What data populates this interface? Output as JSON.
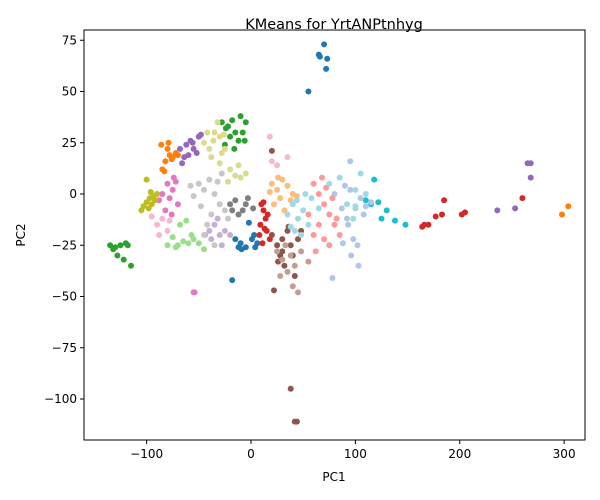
{
  "chart_data": {
    "type": "scatter",
    "title": "KMeans for YrtANPtnhyg",
    "xlabel": "PC1",
    "ylabel": "PC2",
    "xlim": [
      -160,
      320
    ],
    "ylim": [
      -120,
      80
    ],
    "x_ticks": [
      -100,
      0,
      100,
      200,
      300
    ],
    "y_ticks": [
      75,
      50,
      25,
      0,
      -25,
      -50,
      -75,
      -100
    ],
    "x_tick_labels": [
      "−100",
      "0",
      "100",
      "200",
      "300"
    ],
    "y_tick_labels": [
      "75",
      "50",
      "25",
      "0",
      "−25",
      "−50",
      "−75",
      "−100"
    ],
    "grid": false,
    "legend": "none",
    "series": [
      {
        "color": "#1f77b4",
        "points": [
          [
            65,
            68
          ],
          [
            66,
            67
          ],
          [
            70,
            73
          ],
          [
            73,
            66
          ],
          [
            72,
            61
          ],
          [
            55,
            50
          ],
          [
            3,
            -20
          ],
          [
            6,
            -24
          ],
          [
            -5,
            -26
          ],
          [
            -10,
            -24
          ],
          [
            -12,
            -26
          ],
          [
            1,
            -22
          ],
          [
            -2,
            -14
          ],
          [
            4,
            -26
          ],
          [
            -15,
            -22
          ],
          [
            -9,
            -27
          ],
          [
            -18,
            -42
          ]
        ]
      },
      {
        "color": "#ff7f0e",
        "points": [
          [
            -80,
            22
          ],
          [
            -78,
            19
          ],
          [
            -75,
            18
          ],
          [
            -82,
            16
          ],
          [
            -72,
            20
          ],
          [
            -85,
            12
          ],
          [
            -83,
            11
          ],
          [
            -76,
            17
          ],
          [
            -79,
            25
          ],
          [
            -70,
            19
          ],
          [
            -86,
            24
          ],
          [
            298,
            -10
          ],
          [
            304,
            -6
          ]
        ]
      },
      {
        "color": "#2ca02c",
        "points": [
          [
            -28,
            35
          ],
          [
            -22,
            33
          ],
          [
            -18,
            36
          ],
          [
            -10,
            38
          ],
          [
            -15,
            30
          ],
          [
            -20,
            28
          ],
          [
            -25,
            24
          ],
          [
            -12,
            26
          ],
          [
            -8,
            30
          ],
          [
            -5,
            35
          ],
          [
            -24,
            32
          ],
          [
            -16,
            22
          ],
          [
            -6,
            26
          ],
          [
            -135,
            -25
          ],
          [
            -130,
            -26
          ],
          [
            -125,
            -25
          ],
          [
            -120,
            -24
          ],
          [
            -128,
            -30
          ],
          [
            -122,
            -32
          ],
          [
            -115,
            -35
          ],
          [
            -132,
            -27
          ],
          [
            -118,
            -25
          ]
        ]
      },
      {
        "color": "#d62728",
        "points": [
          [
            10,
            -5
          ],
          [
            12,
            -8
          ],
          [
            14,
            -12
          ],
          [
            9,
            -15
          ],
          [
            15,
            -18
          ],
          [
            18,
            -22
          ],
          [
            11,
            -24
          ],
          [
            8,
            -20
          ],
          [
            12,
            -4
          ],
          [
            16,
            -10
          ],
          [
            13,
            -17
          ],
          [
            185,
            -3
          ],
          [
            183,
            -10
          ],
          [
            202,
            -10
          ],
          [
            205,
            -9
          ],
          [
            170,
            -15
          ],
          [
            166,
            -15
          ],
          [
            164,
            -16
          ],
          [
            177,
            -11
          ],
          [
            260,
            -2
          ]
        ]
      },
      {
        "color": "#9467bd",
        "points": [
          [
            -68,
            22
          ],
          [
            -62,
            24
          ],
          [
            -58,
            26
          ],
          [
            -55,
            22
          ],
          [
            -50,
            28
          ],
          [
            -60,
            19
          ],
          [
            -66,
            15
          ],
          [
            -52,
            20
          ],
          [
            -48,
            29
          ],
          [
            -64,
            18
          ],
          [
            -56,
            25
          ],
          [
            265,
            15
          ],
          [
            268,
            15
          ],
          [
            268,
            8
          ],
          [
            253,
            -7
          ],
          [
            236,
            -8
          ]
        ]
      },
      {
        "color": "#8c564b",
        "points": [
          [
            20,
            -20
          ],
          [
            25,
            -25
          ],
          [
            30,
            -22
          ],
          [
            35,
            -18
          ],
          [
            28,
            -30
          ],
          [
            32,
            -35
          ],
          [
            40,
            -30
          ],
          [
            45,
            -22
          ],
          [
            38,
            -25
          ],
          [
            26,
            -33
          ],
          [
            22,
            -47
          ],
          [
            42,
            -40
          ],
          [
            36,
            -16
          ],
          [
            48,
            -18
          ],
          [
            30,
            -28
          ],
          [
            38,
            -95
          ],
          [
            42,
            -111
          ],
          [
            44,
            -111
          ],
          [
            20,
            21
          ]
        ]
      },
      {
        "color": "#e377c2",
        "points": [
          [
            -80,
            5
          ],
          [
            -75,
            2
          ],
          [
            -78,
            -2
          ],
          [
            -85,
            0
          ],
          [
            -72,
            6
          ],
          [
            -70,
            -5
          ],
          [
            -82,
            -8
          ],
          [
            -76,
            -10
          ],
          [
            -74,
            8
          ],
          [
            -88,
            -3
          ],
          [
            -55,
            -48
          ],
          [
            -54,
            -48
          ]
        ]
      },
      {
        "color": "#7f7f7f",
        "points": [
          [
            -5,
            -5
          ],
          [
            -15,
            -3
          ],
          [
            -8,
            -8
          ],
          [
            -20,
            -5
          ],
          [
            -12,
            -10
          ],
          [
            2,
            -7
          ],
          [
            -3,
            -2
          ],
          [
            -18,
            -8
          ]
        ]
      },
      {
        "color": "#bcbd22",
        "points": [
          [
            -100,
            -4
          ],
          [
            -97,
            -2
          ],
          [
            -95,
            -5
          ],
          [
            -92,
            -3
          ],
          [
            -90,
            0
          ],
          [
            -103,
            -6
          ],
          [
            -98,
            -7
          ],
          [
            -93,
            -1
          ],
          [
            -105,
            -8
          ],
          [
            -96,
            1
          ],
          [
            -100,
            7
          ]
        ]
      },
      {
        "color": "#17becf",
        "points": [
          [
            118,
            7
          ],
          [
            122,
            -4
          ],
          [
            130,
            -8
          ],
          [
            125,
            -12
          ],
          [
            138,
            -13
          ],
          [
            115,
            -5
          ],
          [
            148,
            -15
          ],
          [
            110,
            -3
          ]
        ]
      },
      {
        "color": "#aec7e8",
        "points": [
          [
            80,
            0
          ],
          [
            90,
            4
          ],
          [
            95,
            2
          ],
          [
            100,
            -7
          ],
          [
            110,
            -6
          ],
          [
            105,
            -2
          ],
          [
            98,
            -22
          ],
          [
            102,
            -25
          ],
          [
            96,
            -30
          ],
          [
            103,
            -35
          ],
          [
            92,
            -12
          ],
          [
            87,
            -7
          ],
          [
            108,
            -10
          ],
          [
            115,
            -4
          ],
          [
            78,
            -41
          ],
          [
            88,
            -24
          ],
          [
            95,
            16
          ],
          [
            93,
            -15
          ]
        ]
      },
      {
        "color": "#ffbb78",
        "points": [
          [
            20,
            5
          ],
          [
            25,
            2
          ],
          [
            30,
            7
          ],
          [
            35,
            4
          ],
          [
            28,
            -2
          ],
          [
            40,
            0
          ],
          [
            22,
            -5
          ],
          [
            32,
            -8
          ],
          [
            38,
            -3
          ],
          [
            44,
            -1
          ],
          [
            18,
            1
          ],
          [
            26,
            8
          ]
        ]
      },
      {
        "color": "#98df8a",
        "points": [
          [
            -80,
            -25
          ],
          [
            -70,
            -25
          ],
          [
            -65,
            -23
          ],
          [
            -60,
            -24
          ],
          [
            -55,
            -22
          ],
          [
            -75,
            -21
          ],
          [
            -68,
            -15
          ],
          [
            -57,
            -20
          ],
          [
            -50,
            -24
          ],
          [
            -72,
            -26
          ],
          [
            -62,
            -13
          ],
          [
            -45,
            -27
          ]
        ]
      },
      {
        "color": "#ff9896",
        "points": [
          [
            60,
            5
          ],
          [
            65,
            0
          ],
          [
            70,
            -5
          ],
          [
            75,
            -10
          ],
          [
            68,
            8
          ],
          [
            72,
            3
          ],
          [
            78,
            -2
          ],
          [
            65,
            -15
          ],
          [
            60,
            -20
          ],
          [
            70,
            -22
          ],
          [
            80,
            -15
          ],
          [
            75,
            -25
          ],
          [
            85,
            -20
          ],
          [
            55,
            -10
          ],
          [
            62,
            -28
          ],
          [
            82,
            -12
          ]
        ]
      },
      {
        "color": "#c5b0d5",
        "points": [
          [
            -40,
            -18
          ],
          [
            -35,
            -15
          ],
          [
            -30,
            -20
          ],
          [
            -25,
            -18
          ],
          [
            -38,
            -22
          ],
          [
            -28,
            -25
          ],
          [
            -20,
            -20
          ],
          [
            -32,
            -12
          ],
          [
            -44,
            -20
          ]
        ]
      },
      {
        "color": "#c49c94",
        "points": [
          [
            25,
            -28
          ],
          [
            30,
            -32
          ],
          [
            35,
            -38
          ],
          [
            28,
            -40
          ],
          [
            40,
            -45
          ],
          [
            45,
            -48
          ],
          [
            38,
            -30
          ],
          [
            33,
            -25
          ],
          [
            42,
            -35
          ],
          [
            48,
            -28
          ],
          [
            55,
            -33
          ]
        ]
      },
      {
        "color": "#f7b6d2",
        "points": [
          [
            -90,
            -15
          ],
          [
            -85,
            -12
          ],
          [
            -80,
            -18
          ],
          [
            -88,
            -20
          ],
          [
            -78,
            -13
          ],
          [
            20,
            16
          ],
          [
            25,
            14
          ],
          [
            35,
            18
          ],
          [
            18,
            28
          ],
          [
            -95,
            -11
          ]
        ]
      },
      {
        "color": "#c7c7c7",
        "points": [
          [
            -50,
            5
          ],
          [
            -45,
            2
          ],
          [
            -40,
            7
          ],
          [
            -35,
            0
          ],
          [
            -30,
            -5
          ],
          [
            -38,
            -10
          ],
          [
            -42,
            -15
          ],
          [
            -25,
            -8
          ],
          [
            -32,
            6
          ],
          [
            -48,
            -6
          ],
          [
            -55,
            -1
          ],
          [
            -28,
            10
          ],
          [
            -45,
            -20
          ],
          [
            -35,
            -25
          ],
          [
            -58,
            4
          ],
          [
            -22,
            -12
          ]
        ]
      },
      {
        "color": "#dbdb8d",
        "points": [
          [
            -45,
            25
          ],
          [
            -40,
            22
          ],
          [
            -35,
            30
          ],
          [
            -30,
            28
          ],
          [
            -25,
            22
          ],
          [
            -38,
            18
          ],
          [
            -32,
            35
          ],
          [
            -42,
            30
          ],
          [
            -28,
            20
          ],
          [
            -36,
            26
          ],
          [
            -20,
            12
          ],
          [
            -15,
            9
          ],
          [
            -10,
            8
          ],
          [
            -5,
            10
          ],
          [
            -22,
            6
          ],
          [
            -12,
            14
          ],
          [
            -30,
            15
          ],
          [
            -26,
            29
          ]
        ]
      },
      {
        "color": "#9edae5",
        "points": [
          [
            35,
            -10
          ],
          [
            40,
            -5
          ],
          [
            45,
            -12
          ],
          [
            50,
            -8
          ],
          [
            55,
            -15
          ],
          [
            48,
            -20
          ],
          [
            42,
            -18
          ],
          [
            52,
            0
          ],
          [
            38,
            -16
          ],
          [
            58,
            -2
          ],
          [
            65,
            -7
          ],
          [
            44,
            -3
          ],
          [
            75,
            5
          ],
          [
            85,
            8
          ],
          [
            92,
            -5
          ],
          [
            100,
            2
          ],
          [
            105,
            10
          ],
          [
            110,
            0
          ],
          [
            98,
            -12
          ],
          [
            100,
            -6
          ]
        ]
      }
    ]
  }
}
